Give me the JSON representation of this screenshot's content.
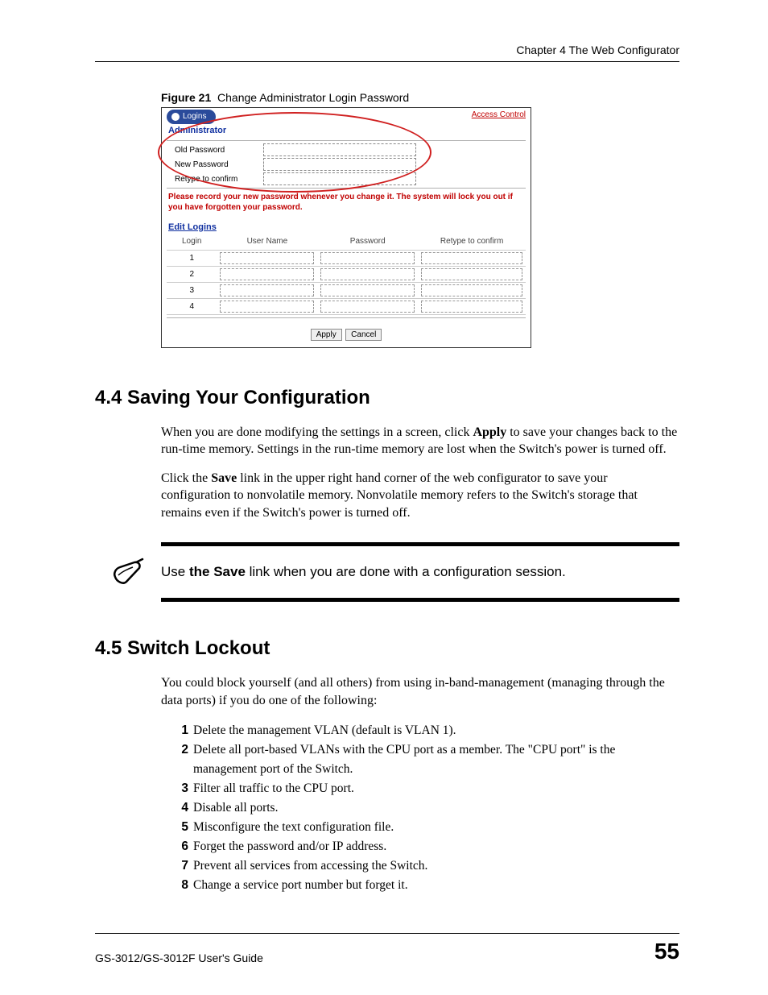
{
  "header": {
    "chapter": "Chapter 4 The Web Configurator"
  },
  "figure": {
    "label": "Figure 21",
    "caption": "Change Administrator Login Password"
  },
  "screenshot": {
    "tab_label": "Logins",
    "tab_bg": "#2a4b9b",
    "tab_text": "#ffffff",
    "access_control": "Access Control",
    "access_color": "#c00000",
    "admin_label": "Administrator",
    "admin_color": "#1030a0",
    "fields": {
      "old": "Old Password",
      "new": "New Password",
      "retype": "Retype to confirm"
    },
    "warning_color": "#c00000",
    "warning": "Please record your new password whenever you change it. The system will lock you out if you have forgotten your password.",
    "edit_label": "Edit Logins",
    "edit_color": "#1030a0",
    "table": {
      "cols": [
        "Login",
        "User Name",
        "Password",
        "Retype to confirm"
      ],
      "rows": [
        "1",
        "2",
        "3",
        "4"
      ]
    },
    "buttons": {
      "apply": "Apply",
      "cancel": "Cancel"
    },
    "ellipse_color": "#d02020"
  },
  "section44": {
    "title": "4.4  Saving Your Configuration",
    "p1a": "When you are done modifying the settings in a screen, click ",
    "p1b": "Apply",
    "p1c": " to save your changes back to the run-time memory. Settings in the run-time memory are lost when the Switch's power is turned off.",
    "p2a": "Click the ",
    "p2b": "Save",
    "p2c": " link in the upper right hand corner of the web configurator to save your configuration to nonvolatile memory. Nonvolatile memory refers to the Switch's storage that remains even if the Switch's power is turned off."
  },
  "note": {
    "text_a": "Use ",
    "text_b": "the Save",
    "text_c": " link when you are done with a configuration session."
  },
  "section45": {
    "title": "4.5  Switch Lockout",
    "intro": "You could block yourself (and all others) from using in-band-management (managing through the data ports) if you do one of the following:",
    "items": [
      "Delete the management VLAN (default is VLAN 1).",
      "Delete all port-based VLANs with the CPU port as a member. The \"CPU port\" is the management port of the Switch.",
      "Filter all traffic to the CPU port.",
      "Disable all ports.",
      "Misconfigure the text configuration file.",
      "Forget the password and/or IP address.",
      "Prevent all services from accessing the Switch.",
      "Change a service port number but forget it."
    ]
  },
  "footer": {
    "guide": "GS-3012/GS-3012F User's Guide",
    "page": "55"
  }
}
